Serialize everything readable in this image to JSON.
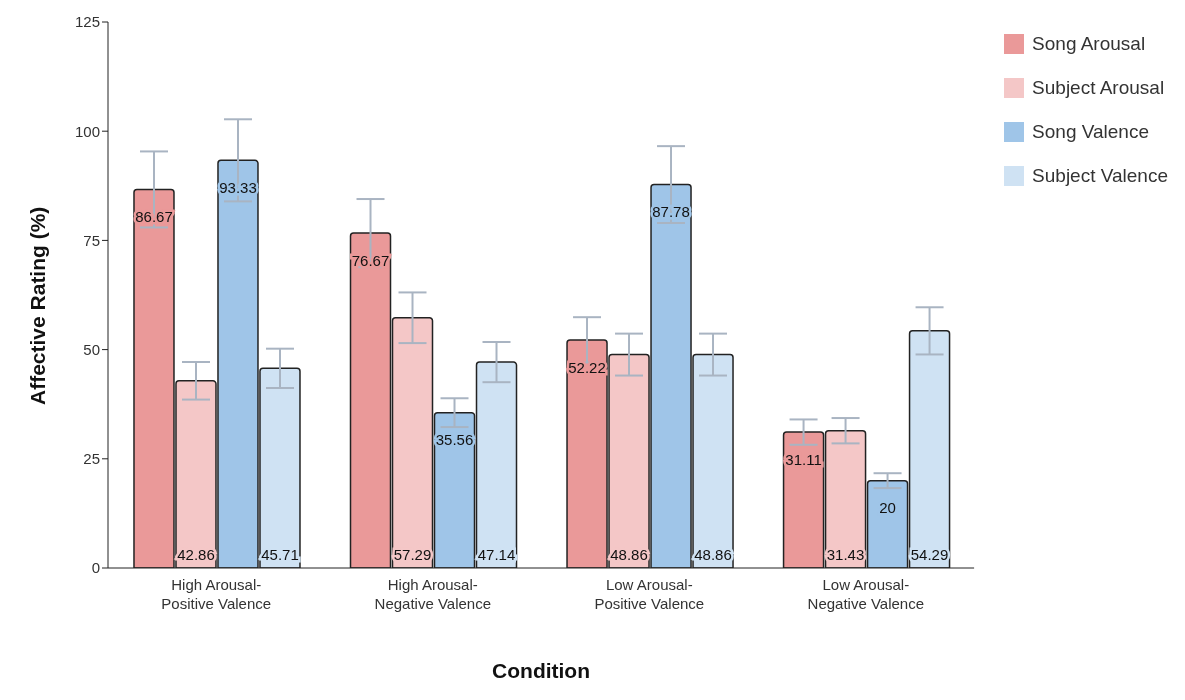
{
  "chart_data": {
    "type": "bar",
    "xlabel": "Condition",
    "ylabel": "Affective Rating (%)",
    "categories": [
      "High Arousal-Positive Valence",
      "High Arousal-Negative Valence",
      "Low Arousal-Positive Valence",
      "Low Arousal-Negative Valence"
    ],
    "series": [
      {
        "name": "Song Arousal",
        "color": "#ea9999",
        "values": [
          86.67,
          76.67,
          52.22,
          31.11
        ],
        "errors": [
          8.7,
          7.8,
          5.2,
          2.9
        ]
      },
      {
        "name": "Subject Arousal",
        "color": "#f4c7c7",
        "values": [
          42.86,
          57.29,
          48.86,
          31.43
        ],
        "errors": [
          4.3,
          5.8,
          4.8,
          2.9
        ]
      },
      {
        "name": "Song Valence",
        "color": "#9fc5e8",
        "values": [
          93.33,
          35.56,
          87.78,
          20
        ],
        "errors": [
          9.4,
          3.3,
          8.8,
          1.7
        ]
      },
      {
        "name": "Subject Valence",
        "color": "#cfe2f3",
        "values": [
          45.71,
          47.14,
          48.86,
          54.29
        ],
        "errors": [
          4.5,
          4.6,
          4.8,
          5.4
        ]
      }
    ],
    "ylim": [
      0,
      125
    ],
    "yticks": [
      0,
      25,
      50,
      75,
      100,
      125
    ],
    "grid": false,
    "legend": "top right",
    "data_labels": true
  }
}
